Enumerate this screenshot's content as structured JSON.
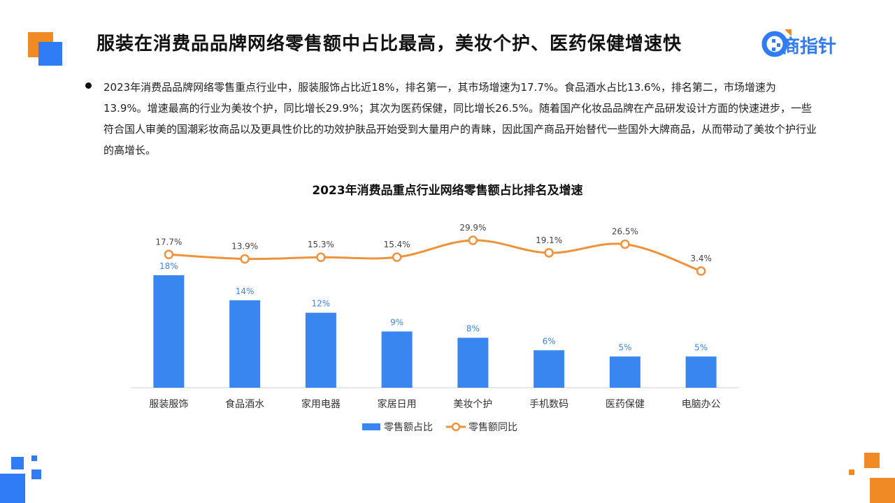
{
  "header": {
    "title": "服装在消费品品牌网络零售额中占比最高，美妆个护、医药保健增速快",
    "logo_text": "商指针"
  },
  "body": {
    "paragraph": "2023年消费品品牌网络零售重点行业中，服装服饰占比近18%，排名第一，其市场增速为17.7%。食品酒水占比13.6%，排名第二，市场增速为13.9%。增速最高的行业为美妆个护，同比增长29.9%；其次为医药保健，同比增长26.5%。随着国产化妆品品牌在产品研发设计方面的快速进步，一些符合国人审美的国潮彩妆商品以及更具性价比的功效护肤品开始受到大量用户的青睐，因此国产商品开始替代一些国外大牌商品，从而带动了美妆个护行业的高增长。"
  },
  "colors": {
    "bar": "#3a86f0",
    "line": "#f0923a",
    "accent_blue": "#2f7cf6",
    "accent_orange": "#f08a24"
  },
  "chart_data": {
    "type": "bar+line",
    "title": "2023年消费品重点行业网络零售额占比排名及增速",
    "categories": [
      "服装服饰",
      "食品酒水",
      "家用电器",
      "家居日用",
      "美妆个护",
      "手机数码",
      "医药保健",
      "电脑办公"
    ],
    "series": [
      {
        "name": "零售额占比",
        "type": "bar",
        "values": [
          18,
          14,
          12,
          9,
          8,
          6,
          5,
          5
        ],
        "labels": [
          "18%",
          "14%",
          "12%",
          "9%",
          "8%",
          "6%",
          "5%",
          "5%"
        ]
      },
      {
        "name": "零售额同比",
        "type": "line",
        "values": [
          17.7,
          13.9,
          15.3,
          15.4,
          29.9,
          19.1,
          26.5,
          3.4
        ],
        "labels": [
          "17.7%",
          "13.9%",
          "15.3%",
          "15.4%",
          "29.9%",
          "19.1%",
          "26.5%",
          "3.4%"
        ]
      }
    ],
    "legend_position": "bottom",
    "grid": false
  }
}
